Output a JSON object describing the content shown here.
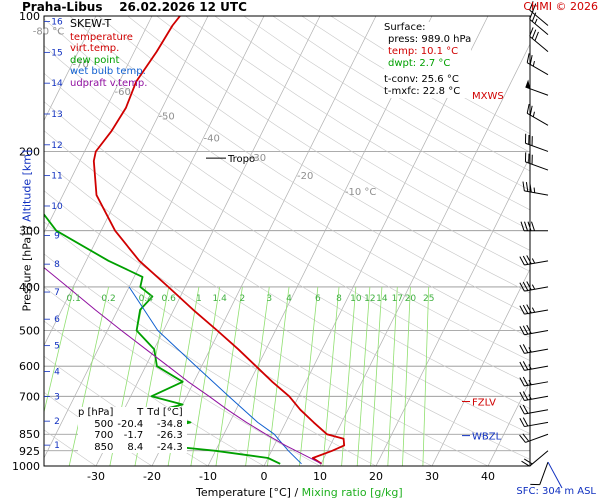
{
  "header": {
    "station": "Praha-Libus",
    "datetime": "26.02.2026 12 UTC",
    "copyright": "CHMI © 2026"
  },
  "legend": {
    "title": "SKEW-T",
    "items": [
      {
        "label": "temperature",
        "color": "#d00000"
      },
      {
        "label": "virt.temp.",
        "color": "#d00000"
      },
      {
        "label": "dew point",
        "color": "#00a000"
      },
      {
        "label": "wet bulb temp.",
        "color": "#1060d0"
      },
      {
        "label": "udpraft v.temp.",
        "color": "#9010a0"
      }
    ]
  },
  "surface": {
    "title": "Surface:",
    "press": "press: 989.0 hPa",
    "temp": "temp: 10.1 °C",
    "dwpt": "dwpt: 2.7 °C",
    "tconv": "t-conv: 25.6 °C",
    "tmxfc": "t-mxfc: 22.8 °C",
    "temp_color": "#d00000",
    "dwpt_color": "#00a000"
  },
  "stability_table": {
    "headers": [
      "p [hPa]",
      "T",
      "Td [°C]"
    ],
    "rows": [
      [
        "500",
        "-20.4",
        "-34.8"
      ],
      [
        "700",
        "-1.7",
        "-26.3"
      ],
      [
        "850",
        "8.4",
        "-24.3"
      ]
    ]
  },
  "labels": {
    "tropo": "Tropo",
    "mxws": "MXWS",
    "fzlv": "FZLV",
    "wbzl": "WBZL",
    "sfc": "SFC: 304 m ASL",
    "xlabel_temp": "Temperature [°C]",
    "xlabel_sep": " / ",
    "xlabel_mixing": "Mixing ratio [g/kg]",
    "ylabel_pressure": "Pressure [hPa]",
    "ylabel_sep": " / ",
    "ylabel_alt": "Altitude [km]"
  },
  "colors": {
    "temperature": "#d00000",
    "dewpoint": "#00a000",
    "wetbulb": "#1060d0",
    "parcel": "#9010a0",
    "mixing_ratio": "#90e070",
    "isobar": "#909090",
    "isotherm": "#b0b0b0",
    "altitude": "#1030c0",
    "wind": "#000000"
  },
  "chart_data": {
    "type": "line",
    "title": "Praha-Libus 26.02.2026 12 UTC",
    "xlabel": "Temperature [°C] / Mixing ratio [g/kg]",
    "ylabel": "Pressure [hPa] / Altitude [km]",
    "xlim": [
      -35,
      45
    ],
    "ylim_pressure": [
      1000,
      100
    ],
    "y_scale": "log",
    "x_ticks": [
      -30,
      -20,
      -10,
      0,
      10,
      20,
      30,
      40
    ],
    "pressure_ticks": [
      100,
      200,
      300,
      400,
      500,
      600,
      700,
      850,
      925,
      1000
    ],
    "altitude_ticks_km": [
      1,
      2,
      3,
      4,
      5,
      6,
      7,
      8,
      9,
      10,
      11,
      12,
      13,
      14,
      15,
      16
    ],
    "isotherm_labels": [
      -80,
      -70,
      -60,
      -50,
      -40,
      -30,
      -20,
      -10
    ],
    "mixing_ratio_labels": [
      0.1,
      0.2,
      0.4,
      0.6,
      1,
      1.4,
      2,
      3,
      4,
      6,
      8,
      10,
      12,
      14,
      17,
      20,
      25
    ],
    "series": [
      {
        "name": "temperature",
        "points": [
          [
            989,
            10.1
          ],
          [
            960,
            8.0
          ],
          [
            925,
            10.8
          ],
          [
            900,
            12.5
          ],
          [
            870,
            11.8
          ],
          [
            850,
            8.4
          ],
          [
            800,
            5.0
          ],
          [
            750,
            1.5
          ],
          [
            700,
            -1.7
          ],
          [
            650,
            -6.0
          ],
          [
            600,
            -10.3
          ],
          [
            550,
            -15.0
          ],
          [
            500,
            -20.4
          ],
          [
            450,
            -26.5
          ],
          [
            400,
            -33.0
          ],
          [
            350,
            -40.5
          ],
          [
            300,
            -47.5
          ],
          [
            250,
            -54.0
          ],
          [
            210,
            -57.5
          ],
          [
            200,
            -58.0
          ],
          [
            180,
            -57.0
          ],
          [
            160,
            -56.5
          ],
          [
            140,
            -57.0
          ],
          [
            120,
            -56.0
          ],
          [
            105,
            -55.5
          ],
          [
            100,
            -55.0
          ]
        ]
      },
      {
        "name": "dew point",
        "points": [
          [
            989,
            2.7
          ],
          [
            960,
            0.0
          ],
          [
            925,
            -10.0
          ],
          [
            900,
            -20.0
          ],
          [
            870,
            -22.0
          ],
          [
            850,
            -24.3
          ],
          [
            800,
            -17.0
          ],
          [
            760,
            -25.0
          ],
          [
            730,
            -20.0
          ],
          [
            700,
            -26.3
          ],
          [
            650,
            -22.0
          ],
          [
            600,
            -28.0
          ],
          [
            550,
            -30.0
          ],
          [
            500,
            -34.8
          ],
          [
            450,
            -36.0
          ],
          [
            420,
            -35.0
          ],
          [
            400,
            -38.0
          ],
          [
            380,
            -38.5
          ],
          [
            350,
            -46.0
          ],
          [
            300,
            -58.0
          ],
          [
            250,
            -66.0
          ],
          [
            220,
            -66.5
          ],
          [
            200,
            -74.0
          ],
          [
            180,
            -74.0
          ],
          [
            150,
            -78.0
          ],
          [
            130,
            -82.0
          ],
          [
            115,
            -82.5
          ],
          [
            100,
            -84.0
          ]
        ]
      },
      {
        "name": "wet bulb temp.",
        "points": [
          [
            989,
            6.5
          ],
          [
            925,
            3.0
          ],
          [
            850,
            -1.0
          ],
          [
            800,
            -5.0
          ],
          [
            700,
            -12.5
          ],
          [
            600,
            -21.0
          ],
          [
            500,
            -31.0
          ],
          [
            400,
            -40.0
          ]
        ]
      },
      {
        "name": "udpraft v.temp.",
        "points": [
          [
            989,
            10.1
          ],
          [
            900,
            2.0
          ],
          [
            850,
            -2.5
          ],
          [
            800,
            -7.0
          ],
          [
            750,
            -11.5
          ],
          [
            700,
            -16.0
          ],
          [
            650,
            -21.0
          ],
          [
            600,
            -26.0
          ],
          [
            550,
            -31.5
          ],
          [
            500,
            -37.5
          ],
          [
            450,
            -44.0
          ],
          [
            400,
            -51.0
          ],
          [
            350,
            -59.0
          ],
          [
            300,
            -68.0
          ],
          [
            250,
            -78.5
          ],
          [
            200,
            -91.0
          ],
          [
            160,
            -102.0
          ],
          [
            140,
            -109.0
          ]
        ]
      }
    ],
    "wind_barbs": [
      {
        "p": 980,
        "dir": 200,
        "spd": 10
      },
      {
        "p": 925,
        "dir": 230,
        "spd": 20
      },
      {
        "p": 850,
        "dir": 250,
        "spd": 20
      },
      {
        "p": 800,
        "dir": 260,
        "spd": 20
      },
      {
        "p": 750,
        "dir": 260,
        "spd": 20
      },
      {
        "p": 700,
        "dir": 260,
        "spd": 25
      },
      {
        "p": 650,
        "dir": 260,
        "spd": 25
      },
      {
        "p": 600,
        "dir": 260,
        "spd": 25
      },
      {
        "p": 550,
        "dir": 260,
        "spd": 25
      },
      {
        "p": 500,
        "dir": 260,
        "spd": 30
      },
      {
        "p": 450,
        "dir": 260,
        "spd": 35
      },
      {
        "p": 400,
        "dir": 260,
        "spd": 35
      },
      {
        "p": 350,
        "dir": 260,
        "spd": 35
      },
      {
        "p": 300,
        "dir": 270,
        "spd": 40
      },
      {
        "p": 250,
        "dir": 280,
        "spd": 35
      },
      {
        "p": 220,
        "dir": 290,
        "spd": 30
      },
      {
        "p": 200,
        "dir": 290,
        "spd": 30
      },
      {
        "p": 175,
        "dir": 300,
        "spd": 25
      },
      {
        "p": 150,
        "dir": 290,
        "spd": 50
      },
      {
        "p": 135,
        "dir": 300,
        "spd": 25
      },
      {
        "p": 120,
        "dir": 310,
        "spd": 30
      },
      {
        "p": 110,
        "dir": 310,
        "spd": 25
      },
      {
        "p": 105,
        "dir": 310,
        "spd": 20
      }
    ],
    "markers": [
      {
        "label": "Tropo",
        "p": 207
      },
      {
        "label": "MXWS",
        "p": 150
      },
      {
        "label": "FZLV",
        "p": 719
      },
      {
        "label": "WBZL",
        "p": 856
      }
    ]
  }
}
